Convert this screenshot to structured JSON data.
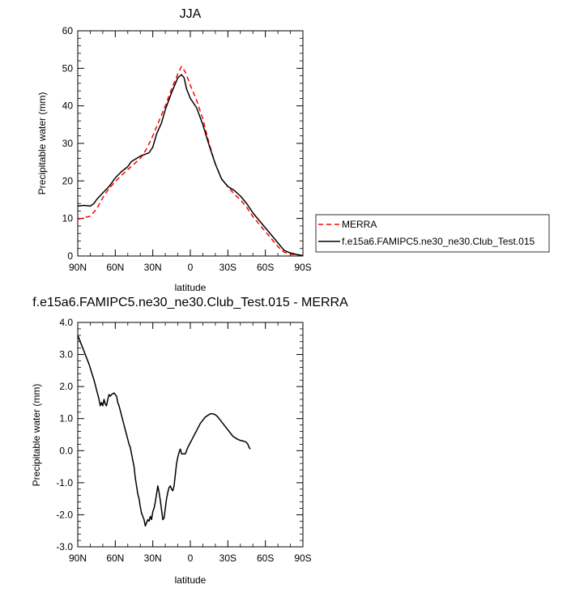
{
  "chart_data": [
    {
      "type": "line",
      "title": "JJA",
      "xlabel": "latitude",
      "ylabel": "Precipitable water (mm)",
      "xlim": [
        90,
        -90
      ],
      "ylim": [
        0,
        60
      ],
      "x_ticks": [
        90,
        60,
        30,
        0,
        -30,
        -60,
        -90
      ],
      "x_tick_labels": [
        "90N",
        "60N",
        "30N",
        "0",
        "30S",
        "60S",
        "90S"
      ],
      "y_ticks": [
        0,
        10,
        20,
        30,
        40,
        50,
        60
      ],
      "y_tick_labels": [
        "0",
        "10",
        "20",
        "30",
        "40",
        "50",
        "60"
      ],
      "legend_position": "right",
      "series": [
        {
          "name": "MERRA",
          "color": "#ff0000",
          "dash": "dashed",
          "points": [
            [
              90,
              9.8
            ],
            [
              85,
              10.2
            ],
            [
              80,
              10.6
            ],
            [
              75,
              12.5
            ],
            [
              70,
              15.5
            ],
            [
              65,
              18.0
            ],
            [
              60,
              19.8
            ],
            [
              55,
              21.5
            ],
            [
              50,
              23.0
            ],
            [
              45,
              24.5
            ],
            [
              40,
              26.0
            ],
            [
              35,
              28.5
            ],
            [
              30,
              32.0
            ],
            [
              25,
              36.0
            ],
            [
              20,
              40.0
            ],
            [
              15,
              44.5
            ],
            [
              10,
              48.5
            ],
            [
              7,
              50.5
            ],
            [
              4,
              49.0
            ],
            [
              0,
              45.5
            ],
            [
              -5,
              41.5
            ],
            [
              -10,
              36.5
            ],
            [
              -15,
              30.0
            ],
            [
              -20,
              24.5
            ],
            [
              -25,
              20.5
            ],
            [
              -30,
              18.5
            ],
            [
              -35,
              16.5
            ],
            [
              -40,
              15.0
            ],
            [
              -45,
              13.0
            ],
            [
              -50,
              10.5
            ],
            [
              -55,
              8.5
            ],
            [
              -60,
              6.5
            ],
            [
              -65,
              4.5
            ],
            [
              -70,
              2.5
            ],
            [
              -75,
              1.0
            ],
            [
              -80,
              0.5
            ],
            [
              -85,
              0.3
            ],
            [
              -90,
              0.1
            ]
          ]
        },
        {
          "name": "f.e15a6.FAMIPC5.ne30_ne30.Club_Test.015",
          "color": "#000000",
          "dash": "solid",
          "points": [
            [
              90,
              13.3
            ],
            [
              85,
              13.5
            ],
            [
              80,
              13.3
            ],
            [
              77,
              14.0
            ],
            [
              75,
              15.0
            ],
            [
              70,
              16.8
            ],
            [
              65,
              18.5
            ],
            [
              60,
              20.8
            ],
            [
              55,
              22.5
            ],
            [
              50,
              23.8
            ],
            [
              47,
              25.2
            ],
            [
              44,
              25.8
            ],
            [
              40,
              26.6
            ],
            [
              37,
              27.0
            ],
            [
              33,
              27.5
            ],
            [
              30,
              29.0
            ],
            [
              27,
              32.5
            ],
            [
              23,
              35.5
            ],
            [
              20,
              39.0
            ],
            [
              15,
              43.5
            ],
            [
              10,
              47.5
            ],
            [
              7,
              48.3
            ],
            [
              5,
              47.5
            ],
            [
              3,
              44.5
            ],
            [
              0,
              42.0
            ],
            [
              -5,
              39.5
            ],
            [
              -10,
              35.0
            ],
            [
              -15,
              29.5
            ],
            [
              -20,
              24.5
            ],
            [
              -25,
              20.5
            ],
            [
              -30,
              18.5
            ],
            [
              -35,
              17.5
            ],
            [
              -40,
              16.0
            ],
            [
              -45,
              14.0
            ],
            [
              -50,
              11.5
            ],
            [
              -55,
              9.5
            ],
            [
              -60,
              7.5
            ],
            [
              -65,
              5.5
            ],
            [
              -70,
              3.5
            ],
            [
              -75,
              1.5
            ],
            [
              -80,
              0.8
            ],
            [
              -85,
              0.4
            ],
            [
              -90,
              0.1
            ]
          ]
        }
      ]
    },
    {
      "type": "line",
      "title": "f.e15a6.FAMIPC5.ne30_ne30.Club_Test.015 - MERRA",
      "xlabel": "latitude",
      "ylabel": "Precipitable water (mm)",
      "xlim": [
        90,
        -90
      ],
      "ylim": [
        -3,
        4
      ],
      "x_ticks": [
        90,
        60,
        30,
        0,
        -30,
        -60,
        -90
      ],
      "x_tick_labels": [
        "90N",
        "60N",
        "30N",
        "0",
        "30S",
        "60S",
        "90S"
      ],
      "y_ticks": [
        -3,
        -2,
        -1,
        0,
        1,
        2,
        3,
        4
      ],
      "y_tick_labels": [
        "-3.0",
        "-2.0",
        "-1.0",
        "0.0",
        "1.0",
        "2.0",
        "3.0",
        "4.0"
      ],
      "series": [
        {
          "color": "#000000",
          "dash": "solid",
          "points": [
            [
              90,
              3.6
            ],
            [
              87,
              3.3
            ],
            [
              84,
              3.0
            ],
            [
              81,
              2.7
            ],
            [
              79,
              2.45
            ],
            [
              77,
              2.2
            ],
            [
              75,
              1.9
            ],
            [
              73,
              1.6
            ],
            [
              72,
              1.4
            ],
            [
              71,
              1.5
            ],
            [
              70,
              1.4
            ],
            [
              69,
              1.6
            ],
            [
              68,
              1.45
            ],
            [
              67,
              1.4
            ],
            [
              66,
              1.6
            ],
            [
              65,
              1.75
            ],
            [
              64,
              1.7
            ],
            [
              63,
              1.75
            ],
            [
              61,
              1.8
            ],
            [
              60,
              1.75
            ],
            [
              59,
              1.7
            ],
            [
              58,
              1.5
            ],
            [
              57,
              1.4
            ],
            [
              55,
              1.1
            ],
            [
              53,
              0.8
            ],
            [
              51,
              0.5
            ],
            [
              49,
              0.2
            ],
            [
              48,
              0.1
            ],
            [
              47,
              -0.1
            ],
            [
              45,
              -0.5
            ],
            [
              44,
              -0.85
            ],
            [
              43,
              -1.1
            ],
            [
              42,
              -1.35
            ],
            [
              41,
              -1.5
            ],
            [
              40,
              -1.75
            ],
            [
              39,
              -1.95
            ],
            [
              37,
              -2.15
            ],
            [
              36,
              -2.35
            ],
            [
              35,
              -2.25
            ],
            [
              34,
              -2.15
            ],
            [
              33,
              -2.2
            ],
            [
              32,
              -2.05
            ],
            [
              31,
              -2.15
            ],
            [
              30,
              -1.9
            ],
            [
              29,
              -1.8
            ],
            [
              28,
              -1.6
            ],
            [
              27,
              -1.35
            ],
            [
              26,
              -1.1
            ],
            [
              25,
              -1.3
            ],
            [
              24,
              -1.55
            ],
            [
              23,
              -1.85
            ],
            [
              22,
              -2.15
            ],
            [
              21,
              -2.1
            ],
            [
              20,
              -1.8
            ],
            [
              19,
              -1.5
            ],
            [
              18,
              -1.3
            ],
            [
              17,
              -1.15
            ],
            [
              16,
              -1.1
            ],
            [
              15,
              -1.2
            ],
            [
              14,
              -1.25
            ],
            [
              13,
              -1.1
            ],
            [
              12,
              -0.75
            ],
            [
              11,
              -0.4
            ],
            [
              10,
              -0.2
            ],
            [
              9,
              -0.05
            ],
            [
              8,
              0.05
            ],
            [
              7,
              -0.1
            ],
            [
              5,
              -0.1
            ],
            [
              4,
              -0.1
            ],
            [
              2,
              0.1
            ],
            [
              0,
              0.25
            ],
            [
              -2,
              0.4
            ],
            [
              -4,
              0.55
            ],
            [
              -6,
              0.7
            ],
            [
              -8,
              0.85
            ],
            [
              -10,
              0.95
            ],
            [
              -12,
              1.05
            ],
            [
              -14,
              1.1
            ],
            [
              -16,
              1.15
            ],
            [
              -18,
              1.15
            ],
            [
              -20,
              1.12
            ],
            [
              -22,
              1.05
            ],
            [
              -24,
              0.95
            ],
            [
              -26,
              0.85
            ],
            [
              -28,
              0.75
            ],
            [
              -30,
              0.65
            ],
            [
              -32,
              0.55
            ],
            [
              -34,
              0.45
            ],
            [
              -36,
              0.4
            ],
            [
              -38,
              0.35
            ],
            [
              -40,
              0.32
            ],
            [
              -42,
              0.3
            ],
            [
              -44,
              0.28
            ],
            [
              -45,
              0.25
            ],
            [
              -46,
              0.2
            ],
            [
              -47,
              0.1
            ],
            [
              -48,
              0.05
            ]
          ]
        }
      ]
    }
  ]
}
